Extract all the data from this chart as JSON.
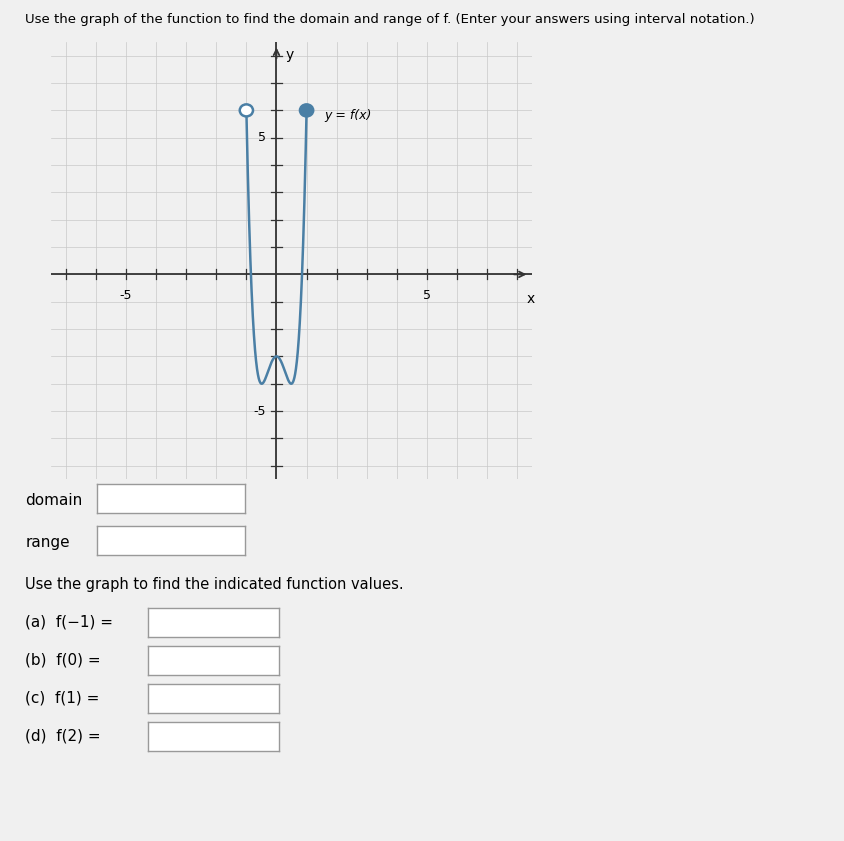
{
  "title": "Use the graph of the function to find the domain and range of f. (Enter your answers using interval notation.)",
  "graph_xlim": [
    -7.5,
    8.5
  ],
  "graph_ylim": [
    -7.5,
    8.5
  ],
  "axis_label_x": "x",
  "axis_label_y": "y",
  "label_text": "y = f(x)",
  "open_circle": [
    -1,
    6
  ],
  "closed_circle": [
    1,
    6
  ],
  "curve_color": "#4a7fa5",
  "curve_linewidth": 1.8,
  "grid_color": "#c8c8c8",
  "bg_color": "#efefef",
  "poly_a": 17.333,
  "poly_b": -8.333,
  "poly_c": -3.0,
  "domain_label": "domain",
  "range_label": "range",
  "sub_question_text": "Use the graph to find the indicated function values.",
  "parts": [
    {
      "label": "(a)  f(−1) ="
    },
    {
      "label": "(b)  f(0) ="
    },
    {
      "label": "(c)  f(1) ="
    },
    {
      "label": "(d)  f(2) ="
    }
  ]
}
